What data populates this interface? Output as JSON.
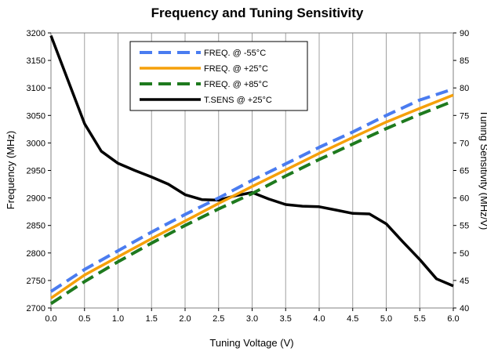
{
  "chart_data": {
    "type": "line",
    "title": "Frequency and Tuning Sensitivity",
    "xlabel": "Tuning Voltage (V)",
    "ylabel": "Frequency (MHz)",
    "y2label": "Tuning Sensitivity (MHz/V)",
    "xlim": [
      0,
      6
    ],
    "ylim": [
      2700,
      3200
    ],
    "y2lim": [
      40,
      90
    ],
    "x_ticks": [
      "0.0",
      "0.5",
      "1.0",
      "1.5",
      "2.0",
      "2.5",
      "3.0",
      "3.5",
      "4.0",
      "4.5",
      "5.0",
      "5.5",
      "6.0"
    ],
    "y_ticks": [
      "2700",
      "2750",
      "2800",
      "2850",
      "2900",
      "2950",
      "3000",
      "3050",
      "3100",
      "3150",
      "3200"
    ],
    "y2_ticks": [
      "40",
      "45",
      "50",
      "55",
      "60",
      "65",
      "70",
      "75",
      "80",
      "85",
      "90"
    ],
    "grid": "vertical",
    "legend_position": "top-center",
    "series": [
      {
        "name": "FREQ. @ -55°C",
        "axis": "left",
        "color": "#4a7cf0",
        "style": "dashed",
        "x": [
          0,
          0.5,
          1.0,
          1.5,
          2.0,
          2.5,
          3.0,
          3.5,
          4.0,
          4.5,
          5.0,
          5.5,
          6.0
        ],
        "y": [
          2730,
          2770,
          2804,
          2838,
          2870,
          2900,
          2932,
          2962,
          2992,
          3020,
          3050,
          3078,
          3098
        ]
      },
      {
        "name": "FREQ. @ +25°C",
        "axis": "left",
        "color": "#f5a00a",
        "style": "solid",
        "x": [
          0,
          0.5,
          1.0,
          1.5,
          2.0,
          2.5,
          3.0,
          3.5,
          4.0,
          4.5,
          5.0,
          5.5,
          6.0
        ],
        "y": [
          2718,
          2760,
          2793,
          2826,
          2858,
          2890,
          2921,
          2951,
          2981,
          3010,
          3038,
          3063,
          3087
        ]
      },
      {
        "name": "FREQ. @ +85°C",
        "axis": "left",
        "color": "#1e7a1e",
        "style": "dashed",
        "x": [
          0,
          0.5,
          1.0,
          1.5,
          2.0,
          2.5,
          3.0,
          3.5,
          4.0,
          4.5,
          5.0,
          5.5,
          6.0
        ],
        "y": [
          2708,
          2748,
          2784,
          2818,
          2850,
          2880,
          2908,
          2940,
          2970,
          2998,
          3026,
          3052,
          3076
        ]
      },
      {
        "name": "T.SENS @ +25°C",
        "axis": "right",
        "color": "#000000",
        "style": "solid",
        "x": [
          0,
          0.25,
          0.5,
          0.75,
          1.0,
          1.25,
          1.5,
          1.75,
          2.0,
          2.25,
          2.5,
          2.75,
          3.0,
          3.25,
          3.5,
          3.75,
          4.0,
          4.25,
          4.5,
          4.75,
          5.0,
          5.25,
          5.5,
          5.75,
          6.0
        ],
        "y": [
          89.5,
          81.5,
          73.5,
          68.5,
          66.3,
          65.0,
          63.8,
          62.5,
          60.6,
          59.7,
          59.6,
          60.4,
          61.0,
          59.8,
          58.8,
          58.5,
          58.4,
          57.8,
          57.2,
          57.1,
          55.3,
          52.0,
          48.8,
          45.3,
          44.0
        ]
      }
    ]
  }
}
